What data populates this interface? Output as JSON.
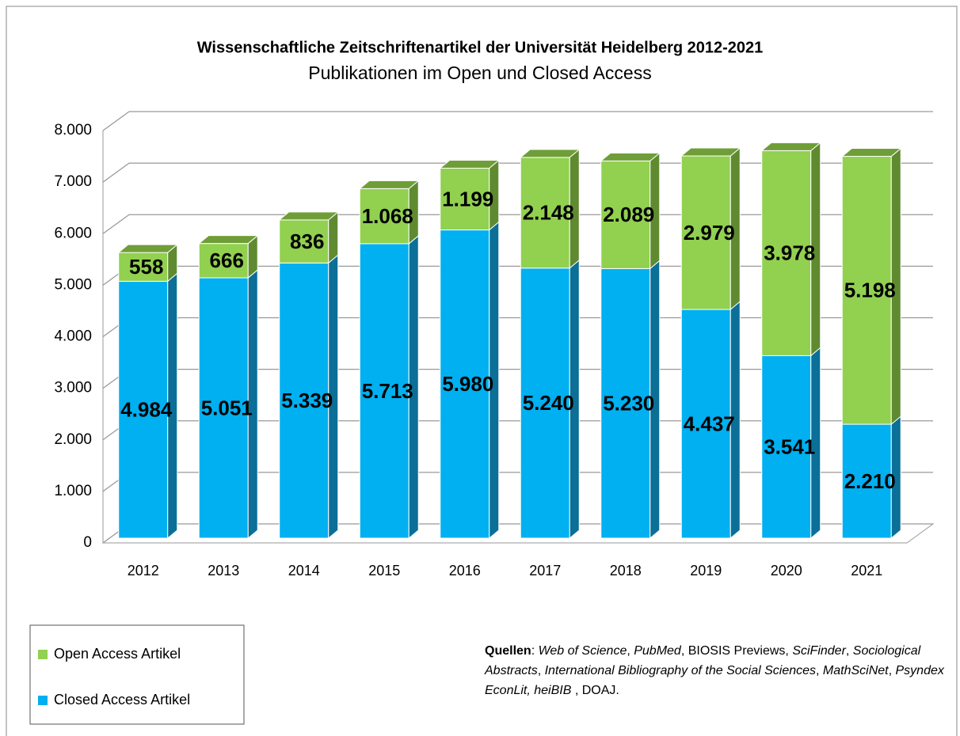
{
  "chart_data": {
    "type": "bar3d_stacked",
    "title": "Wissenschaftliche Zeitschriftenartikel der Universität Heidelberg 2012-2021",
    "subtitle": "Publikationen im Open und Closed Access",
    "categories": [
      "2012",
      "2013",
      "2014",
      "2015",
      "2016",
      "2017",
      "2018",
      "2019",
      "2020",
      "2021"
    ],
    "series": [
      {
        "name": "Closed Access Artikel",
        "color": "#00b0f0",
        "side_color": "#0b6f97",
        "values": [
          4984,
          5051,
          5339,
          5713,
          5980,
          5240,
          5230,
          4437,
          3541,
          2210
        ],
        "value_labels": [
          "4.984",
          "5.051",
          "5.339",
          "5.713",
          "5.980",
          "5.240",
          "5.230",
          "4.437",
          "3.541",
          "2.210"
        ]
      },
      {
        "name": "Open Access Artikel",
        "color": "#92d050",
        "side_color": "#5f8a30",
        "top_color": "#6f9e38",
        "values": [
          558,
          666,
          836,
          1068,
          1199,
          2148,
          2089,
          2979,
          3978,
          5198
        ],
        "value_labels": [
          "558",
          "666",
          "836",
          "1.068",
          "1.199",
          "2.148",
          "2.089",
          "2.979",
          "3.978",
          "5.198"
        ]
      }
    ],
    "ylim": [
      0,
      8000
    ],
    "yticks": [
      0,
      {
        "value": 1000,
        "label": "1.000"
      },
      {
        "value": 2000,
        "label": "2.000"
      },
      {
        "value": 3000,
        "label": "3.000"
      },
      {
        "value": 4000,
        "label": "4.000"
      },
      {
        "value": 5000,
        "label": "5.000"
      },
      {
        "value": 6000,
        "label": "6.000"
      },
      {
        "value": 7000,
        "label": "7.000"
      },
      {
        "value": 8000,
        "label": "8.000"
      }
    ],
    "grid": true,
    "legend": "bottom-left",
    "source": [
      {
        "text": "Quellen",
        "style": "bold"
      },
      {
        "text": ": "
      },
      {
        "text": "Web of Science",
        "style": "italic"
      },
      {
        "text": ", "
      },
      {
        "text": "PubMed",
        "style": "italic"
      },
      {
        "text": ", BIOSIS Previews, "
      },
      {
        "text": "SciFinder",
        "style": "italic"
      },
      {
        "text": ", "
      },
      {
        "text": "Sociological Abstracts",
        "style": "italic"
      },
      {
        "text": ", "
      },
      {
        "text": "International Bibliography of the Social Sciences",
        "style": "italic"
      },
      {
        "text": ", "
      },
      {
        "text": "MathSciNet",
        "style": "italic"
      },
      {
        "text": ", "
      },
      {
        "text": "Psyndex EconLit, heiBIB",
        "style": "italic"
      },
      {
        "text": " , DOAJ."
      }
    ]
  }
}
